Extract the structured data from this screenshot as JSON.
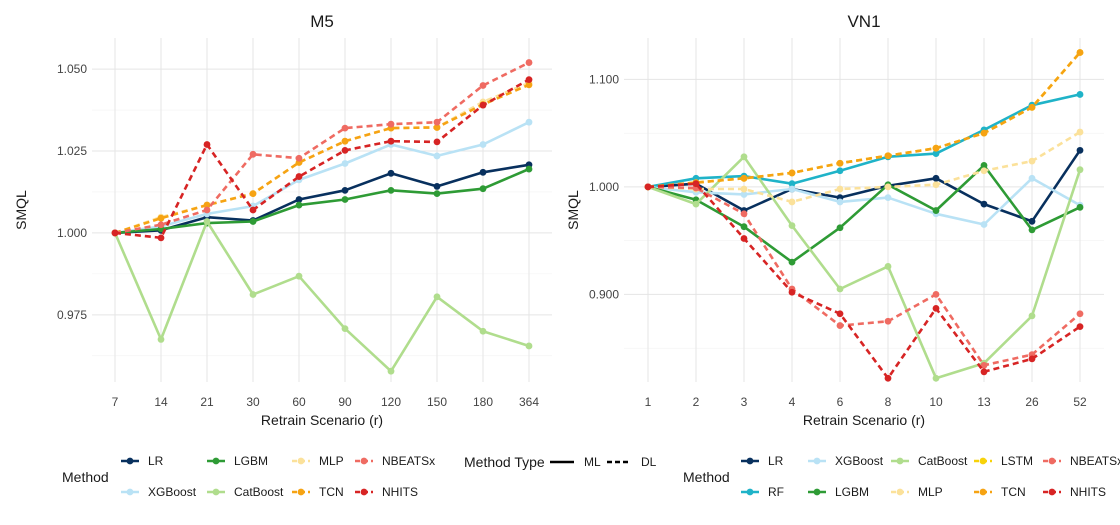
{
  "colors": {
    "LR": "#08305e",
    "RF": "#1fb3c8",
    "XGBoost": "#b9e2f5",
    "LGBM": "#2e9b35",
    "CatBoost": "#b0dd8d",
    "MLP": "#fbe19a",
    "LSTM": "#f7d20a",
    "TCN": "#f6a313",
    "NBEATSx": "#ef6b62",
    "NHITS": "#d72424"
  },
  "chart_data": [
    {
      "type": "line",
      "title": "M5",
      "xlabel": "Retrain Scenario (r)",
      "ylabel": "SMQL",
      "categories": [
        "7",
        "14",
        "21",
        "30",
        "60",
        "90",
        "120",
        "150",
        "180",
        "364"
      ],
      "ylim": [
        0.9545,
        1.0595
      ],
      "yticks": [
        0.975,
        1.0,
        1.025,
        1.05
      ],
      "ytick_labels": [
        "0.975",
        "1.000",
        "1.025",
        "1.050"
      ],
      "grid": true,
      "series": [
        {
          "name": "LR",
          "type": "ML",
          "values": [
            1.0,
            1.0008,
            1.0048,
            1.0038,
            1.0102,
            1.013,
            1.0182,
            1.0142,
            1.0185,
            1.0208
          ]
        },
        {
          "name": "XGBoost",
          "type": "ML",
          "values": [
            1.0,
            1.002,
            1.0058,
            1.0082,
            1.0162,
            1.0212,
            1.027,
            1.0235,
            1.027,
            1.0338
          ]
        },
        {
          "name": "LGBM",
          "type": "ML",
          "values": [
            1.0,
            1.0012,
            1.003,
            1.0035,
            1.0085,
            1.0102,
            1.013,
            1.012,
            1.0135,
            1.0195
          ]
        },
        {
          "name": "CatBoost",
          "type": "ML",
          "values": [
            1.0,
            0.9675,
            1.0035,
            0.9812,
            0.9868,
            0.9708,
            0.9578,
            0.9805,
            0.97,
            0.9655
          ]
        },
        {
          "name": "MLP",
          "type": "DL",
          "values": [
            1.0,
            1.0048,
            1.0085,
            1.012,
            1.0215,
            1.028,
            1.032,
            1.0322,
            1.04,
            1.0458
          ]
        },
        {
          "name": "TCN",
          "type": "DL",
          "values": [
            1.0,
            1.0045,
            1.0085,
            1.012,
            1.0215,
            1.028,
            1.032,
            1.0322,
            1.0392,
            1.0452
          ]
        },
        {
          "name": "NBEATSx",
          "type": "DL",
          "values": [
            1.0,
            1.0025,
            1.007,
            1.024,
            1.0228,
            1.032,
            1.0332,
            1.0338,
            1.045,
            1.052
          ]
        },
        {
          "name": "NHITS",
          "type": "DL",
          "values": [
            1.0,
            0.9985,
            1.027,
            1.007,
            1.0172,
            1.0252,
            1.028,
            1.0278,
            1.039,
            1.0468
          ]
        }
      ],
      "legend": {
        "position": "bottom",
        "title": "Method",
        "items": [
          [
            "LR",
            "LGBM",
            "MLP",
            "NBEATSx"
          ],
          [
            "XGBoost",
            "CatBoost",
            "TCN",
            "NHITS"
          ]
        ],
        "type_title": "Method Type",
        "type_items": [
          "ML",
          "DL"
        ]
      }
    },
    {
      "type": "line",
      "title": "VN1",
      "xlabel": "Retrain Scenario (r)",
      "ylabel": "SMQL",
      "categories": [
        "1",
        "2",
        "3",
        "4",
        "6",
        "8",
        "10",
        "13",
        "26",
        "52"
      ],
      "ylim": [
        0.8185,
        1.1385
      ],
      "yticks": [
        0.9,
        1.0,
        1.1
      ],
      "ytick_labels": [
        "0.900",
        "1.000",
        "1.100"
      ],
      "grid": true,
      "series": [
        {
          "name": "LR",
          "type": "ML",
          "values": [
            1.0,
            1.003,
            0.978,
            0.998,
            0.99,
            1.001,
            1.008,
            0.984,
            0.968,
            1.034
          ]
        },
        {
          "name": "RF",
          "type": "ML",
          "values": [
            1.0,
            1.008,
            1.01,
            1.003,
            1.015,
            1.028,
            1.031,
            1.053,
            1.076,
            1.086
          ]
        },
        {
          "name": "XGBoost",
          "type": "ML",
          "values": [
            1.0,
            0.995,
            0.993,
            0.998,
            0.986,
            0.99,
            0.975,
            0.965,
            1.008,
            0.983
          ]
        },
        {
          "name": "LGBM",
          "type": "ML",
          "values": [
            1.0,
            0.988,
            0.963,
            0.93,
            0.962,
            1.002,
            0.978,
            1.02,
            0.96,
            0.981
          ]
        },
        {
          "name": "CatBoost",
          "type": "ML",
          "values": [
            1.0,
            0.984,
            1.028,
            0.964,
            0.905,
            0.926,
            0.822,
            0.836,
            0.88,
            1.016
          ]
        },
        {
          "name": "MLP",
          "type": "DL",
          "values": [
            1.0,
            0.998,
            0.998,
            0.986,
            0.998,
            1.0,
            1.002,
            1.015,
            1.024,
            1.051
          ]
        },
        {
          "name": "LSTM",
          "type": "DL",
          "values": [
            1.0,
            1.004,
            1.008,
            1.013,
            1.022,
            1.029,
            1.036,
            1.05,
            1.074,
            1.125
          ]
        },
        {
          "name": "TCN",
          "type": "DL",
          "values": [
            1.0,
            1.004,
            1.008,
            1.013,
            1.022,
            1.029,
            1.036,
            1.05,
            1.074,
            1.125
          ]
        },
        {
          "name": "NBEATSx",
          "type": "DL",
          "values": [
            1.0,
            0.999,
            0.975,
            0.905,
            0.871,
            0.875,
            0.9,
            0.834,
            0.844,
            0.882
          ]
        },
        {
          "name": "NHITS",
          "type": "DL",
          "values": [
            1.0,
            1.003,
            0.952,
            0.902,
            0.882,
            0.822,
            0.887,
            0.828,
            0.84,
            0.87
          ]
        }
      ],
      "legend": {
        "position": "bottom",
        "title": "Method",
        "items": [
          [
            "LR",
            "XGBoost",
            "CatBoost",
            "LSTM",
            "NBEATSx"
          ],
          [
            "RF",
            "LGBM",
            "MLP",
            "TCN",
            "NHITS"
          ]
        ]
      }
    }
  ]
}
